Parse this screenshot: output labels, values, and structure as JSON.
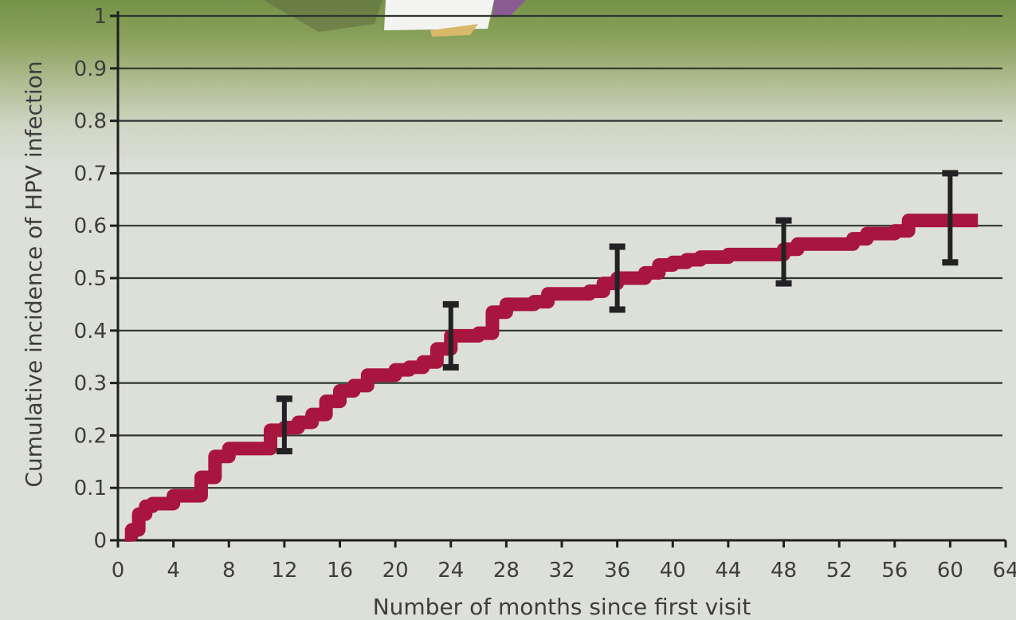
{
  "chart_data": {
    "type": "line",
    "title": "",
    "xlabel": "Number of months since first visit",
    "ylabel": "Cumulative incidence of HPV infection",
    "xlim": [
      0,
      64
    ],
    "ylim": [
      0,
      1
    ],
    "x_ticks": [
      0,
      4,
      8,
      12,
      16,
      20,
      24,
      28,
      32,
      36,
      40,
      44,
      48,
      52,
      56,
      60,
      64
    ],
    "y_ticks": [
      0,
      0.1,
      0.2,
      0.3,
      0.4,
      0.5,
      0.6,
      0.7,
      0.8,
      0.9,
      1
    ],
    "y_tick_labels": [
      "0",
      "0.1",
      "0.2",
      "0.3",
      "0.4",
      "0.5",
      "0.6",
      "0.7",
      "0.8",
      "0.9",
      "1"
    ],
    "grid": "horizontal",
    "series": [
      {
        "step": true,
        "color": "#a8153f",
        "x": [
          0.5,
          1,
          1.5,
          2,
          2.5,
          3,
          4,
          5,
          6,
          7,
          8,
          10,
          11,
          12,
          13,
          14,
          15,
          16,
          17,
          18,
          20,
          21,
          22,
          23,
          24,
          26,
          27,
          28,
          30,
          31,
          34,
          35,
          36,
          38,
          39,
          40,
          41,
          42,
          44,
          45,
          48,
          49,
          53,
          54,
          56,
          57,
          60,
          62
        ],
        "y": [
          0.01,
          0.02,
          0.05,
          0.065,
          0.07,
          0.07,
          0.085,
          0.085,
          0.12,
          0.16,
          0.175,
          0.175,
          0.21,
          0.215,
          0.225,
          0.24,
          0.265,
          0.285,
          0.295,
          0.315,
          0.325,
          0.33,
          0.34,
          0.365,
          0.39,
          0.395,
          0.435,
          0.45,
          0.455,
          0.47,
          0.475,
          0.49,
          0.5,
          0.51,
          0.525,
          0.53,
          0.535,
          0.54,
          0.545,
          0.545,
          0.555,
          0.565,
          0.575,
          0.585,
          0.59,
          0.61,
          0.61,
          0.61
        ]
      }
    ],
    "error_bars": [
      {
        "x": 12,
        "low": 0.17,
        "high": 0.27
      },
      {
        "x": 24,
        "low": 0.33,
        "high": 0.45
      },
      {
        "x": 36,
        "low": 0.44,
        "high": 0.56
      },
      {
        "x": 48,
        "low": 0.49,
        "high": 0.61
      },
      {
        "x": 60,
        "low": 0.53,
        "high": 0.7
      }
    ],
    "colors": {
      "series": "#a8153f",
      "error_bar": "#222222",
      "grid": "#2f342f",
      "background": "#dde0d8",
      "grass_band": "#6e8f3c"
    }
  }
}
